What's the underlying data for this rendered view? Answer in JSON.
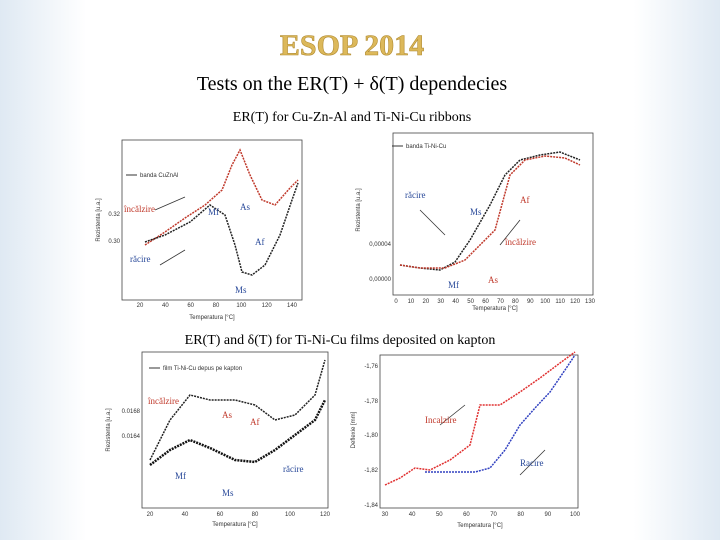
{
  "header": {
    "title": "ESOP 2014",
    "subtitle": "Tests on the ER(T) + δ(T) dependecies"
  },
  "sections": [
    {
      "heading": "ER(T)  for Cu-Zn-Al  and Ti-Ni-Cu ribbons"
    },
    {
      "heading": "ER(T) and δ(T) for Ti-Ni-Cu films deposited on kapton"
    }
  ],
  "figures": [
    {
      "legend": "banda CuZnAl",
      "ylabel": "Rezistenta [u.a.]",
      "xlabel": "Temperatura [°C]",
      "xticks": [
        "20",
        "40",
        "60",
        "80",
        "100",
        "120",
        "140"
      ],
      "yticks": [
        "0.32",
        "0.30"
      ],
      "annotations": [
        "încălzire",
        "răcire",
        "Ms",
        "Mf",
        "As",
        "Af"
      ]
    },
    {
      "legend": "banda Ti-Ni-Cu",
      "ylabel": "Rezistenta [u.a.]",
      "xlabel": "Temperatura [°C]",
      "xticks": [
        "0",
        "10",
        "20",
        "30",
        "40",
        "50",
        "60",
        "70",
        "80",
        "90",
        "100",
        "110",
        "120",
        "130"
      ],
      "yticks": [
        "0,00004",
        "0,00000"
      ],
      "annotations": [
        "răcire",
        "Ms",
        "Af",
        "încălzire",
        "Mf",
        "As"
      ]
    },
    {
      "legend": "film Ti-Ni-Cu depus pe kapton",
      "ylabel": "Rezistenta [u.a.]",
      "xlabel": "Temperatura [°C]",
      "xticks": [
        "20",
        "40",
        "60",
        "80",
        "100",
        "120"
      ],
      "yticks": [
        "0.0168",
        "0.0164"
      ],
      "annotations": [
        "încălzire",
        "As",
        "Af",
        "răcire",
        "Mf",
        "Ms"
      ]
    },
    {
      "ylabel": "Deflexie [mm]",
      "xlabel": "Temperatura [°C]",
      "xticks": [
        "30",
        "40",
        "50",
        "60",
        "70",
        "80",
        "90",
        "100"
      ],
      "yticks": [
        "-1,76",
        "-1,78",
        "-1,80",
        "-1,82",
        "-1,84"
      ],
      "annotations": [
        "Incalzire",
        "Racire"
      ]
    }
  ]
}
